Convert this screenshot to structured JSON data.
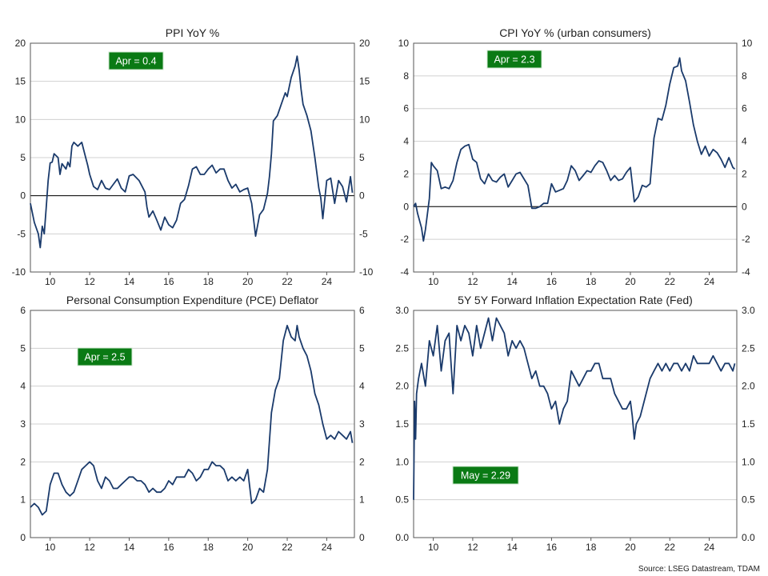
{
  "source": "Source: LSEG Datastream, TDAM",
  "chart_data": [
    {
      "type": "line",
      "title": "PPI YoY %",
      "badge": "Apr  = 0.4",
      "ylim": [
        -10,
        20
      ],
      "yticks": [
        -10,
        -5,
        0,
        5,
        10,
        15,
        20
      ],
      "xlim": [
        2009.0,
        2025.4
      ],
      "xticks": [
        10,
        12,
        14,
        16,
        18,
        20,
        22,
        24
      ],
      "zero_line": true,
      "grid": true,
      "color": "#1a3a6b",
      "series": [
        {
          "x": [
            2009.0,
            2009.2,
            2009.4,
            2009.5,
            2009.6,
            2009.7,
            2009.8,
            2009.9,
            2010.0,
            2010.1,
            2010.2,
            2010.4,
            2010.5,
            2010.6,
            2010.8,
            2010.9,
            2011.0,
            2011.1,
            2011.2,
            2011.4,
            2011.6,
            2011.8,
            2011.9,
            2012.0,
            2012.2,
            2012.4,
            2012.6,
            2012.8,
            2013.0,
            2013.2,
            2013.4,
            2013.6,
            2013.8,
            2014.0,
            2014.2,
            2014.5,
            2014.8,
            2014.9,
            2015.0,
            2015.2,
            2015.4,
            2015.6,
            2015.8,
            2016.0,
            2016.2,
            2016.4,
            2016.6,
            2016.8,
            2017.0,
            2017.2,
            2017.4,
            2017.6,
            2017.8,
            2018.0,
            2018.2,
            2018.4,
            2018.6,
            2018.8,
            2019.0,
            2019.2,
            2019.4,
            2019.6,
            2019.8,
            2020.0,
            2020.2,
            2020.4,
            2020.6,
            2020.8,
            2021.0,
            2021.1,
            2021.2,
            2021.3,
            2021.5,
            2021.7,
            2021.9,
            2022.0,
            2022.2,
            2022.4,
            2022.5,
            2022.6,
            2022.7,
            2022.8,
            2023.0,
            2023.2,
            2023.4,
            2023.6,
            2023.7,
            2023.8,
            2024.0,
            2024.2,
            2024.4,
            2024.6,
            2024.8,
            2025.0,
            2025.2,
            2025.3
          ],
          "y": [
            -1.0,
            -3.5,
            -5.0,
            -6.8,
            -4.0,
            -5.0,
            -1.5,
            2.0,
            4.3,
            4.4,
            5.5,
            5.0,
            2.8,
            4.2,
            3.5,
            4.4,
            3.8,
            6.5,
            7.0,
            6.5,
            7.0,
            5.0,
            4.0,
            2.8,
            1.2,
            0.8,
            2.0,
            1.0,
            0.8,
            1.5,
            2.2,
            1.0,
            0.5,
            2.6,
            2.8,
            2.0,
            0.5,
            -1.5,
            -2.8,
            -2.0,
            -3.2,
            -4.5,
            -2.8,
            -3.8,
            -4.2,
            -3.2,
            -1.0,
            -0.5,
            1.3,
            3.5,
            3.8,
            2.8,
            2.8,
            3.5,
            4.0,
            3.0,
            3.5,
            3.5,
            2.0,
            1.0,
            1.5,
            0.5,
            0.8,
            1.0,
            -1.0,
            -5.3,
            -2.5,
            -1.8,
            0.3,
            2.5,
            5.5,
            9.8,
            10.5,
            12.0,
            13.5,
            13.0,
            15.5,
            17.0,
            18.3,
            16.5,
            14.0,
            12.0,
            10.5,
            8.5,
            5.0,
            1.0,
            -0.3,
            -3.0,
            2.0,
            2.3,
            -1.0,
            2.0,
            1.2,
            -0.8,
            2.5,
            0.4
          ]
        }
      ]
    },
    {
      "type": "line",
      "title": "CPI YoY % (urban consumers)",
      "badge": "Apr  = 2.3",
      "ylim": [
        -4,
        10
      ],
      "yticks": [
        -4,
        -2,
        0,
        2,
        4,
        6,
        8,
        10
      ],
      "xlim": [
        2009.0,
        2025.4
      ],
      "xticks": [
        10,
        12,
        14,
        16,
        18,
        20,
        22,
        24
      ],
      "zero_line": true,
      "grid": true,
      "color": "#1a3a6b",
      "series": [
        {
          "x": [
            2009.0,
            2009.1,
            2009.2,
            2009.4,
            2009.5,
            2009.6,
            2009.8,
            2009.9,
            2010.0,
            2010.2,
            2010.4,
            2010.6,
            2010.8,
            2011.0,
            2011.2,
            2011.4,
            2011.6,
            2011.8,
            2012.0,
            2012.2,
            2012.4,
            2012.6,
            2012.8,
            2013.0,
            2013.2,
            2013.4,
            2013.6,
            2013.8,
            2014.0,
            2014.2,
            2014.4,
            2014.6,
            2014.8,
            2015.0,
            2015.2,
            2015.4,
            2015.6,
            2015.8,
            2016.0,
            2016.2,
            2016.4,
            2016.6,
            2016.8,
            2017.0,
            2017.2,
            2017.4,
            2017.6,
            2017.8,
            2018.0,
            2018.2,
            2018.4,
            2018.6,
            2018.8,
            2019.0,
            2019.2,
            2019.4,
            2019.6,
            2019.8,
            2020.0,
            2020.2,
            2020.4,
            2020.6,
            2020.8,
            2021.0,
            2021.2,
            2021.4,
            2021.6,
            2021.8,
            2022.0,
            2022.2,
            2022.4,
            2022.5,
            2022.6,
            2022.8,
            2023.0,
            2023.2,
            2023.4,
            2023.6,
            2023.8,
            2024.0,
            2024.2,
            2024.4,
            2024.6,
            2024.8,
            2025.0,
            2025.2,
            2025.3
          ],
          "y": [
            0.0,
            0.2,
            -0.4,
            -1.3,
            -2.1,
            -1.4,
            0.5,
            2.7,
            2.5,
            2.2,
            1.1,
            1.2,
            1.1,
            1.6,
            2.7,
            3.5,
            3.7,
            3.8,
            2.9,
            2.7,
            1.7,
            1.4,
            2.0,
            1.6,
            1.5,
            1.8,
            2.0,
            1.2,
            1.6,
            2.0,
            2.1,
            1.7,
            1.3,
            -0.1,
            -0.1,
            0.0,
            0.2,
            0.2,
            1.4,
            0.9,
            1.0,
            1.1,
            1.6,
            2.5,
            2.2,
            1.6,
            1.9,
            2.2,
            2.1,
            2.5,
            2.8,
            2.7,
            2.2,
            1.6,
            1.9,
            1.6,
            1.7,
            2.1,
            2.4,
            0.3,
            0.6,
            1.3,
            1.2,
            1.4,
            4.2,
            5.4,
            5.3,
            6.2,
            7.5,
            8.5,
            8.6,
            9.1,
            8.3,
            7.7,
            6.4,
            5.0,
            4.0,
            3.2,
            3.7,
            3.1,
            3.5,
            3.3,
            2.9,
            2.4,
            3.0,
            2.4,
            2.3
          ]
        }
      ]
    },
    {
      "type": "line",
      "title": "Personal Consumption Expenditure (PCE) Deflator",
      "badge": "Apr  = 2.5",
      "ylim": [
        0,
        6
      ],
      "yticks": [
        0,
        1,
        2,
        3,
        4,
        5,
        6
      ],
      "xlim": [
        2009.0,
        2025.4
      ],
      "xticks": [
        10,
        12,
        14,
        16,
        18,
        20,
        22,
        24
      ],
      "zero_line": false,
      "grid": true,
      "color": "#1a3a6b",
      "series": [
        {
          "x": [
            2009.0,
            2009.2,
            2009.4,
            2009.6,
            2009.8,
            2010.0,
            2010.2,
            2010.4,
            2010.6,
            2010.8,
            2011.0,
            2011.2,
            2011.4,
            2011.6,
            2011.8,
            2012.0,
            2012.2,
            2012.4,
            2012.6,
            2012.8,
            2013.0,
            2013.2,
            2013.4,
            2013.6,
            2013.8,
            2014.0,
            2014.2,
            2014.4,
            2014.6,
            2014.8,
            2015.0,
            2015.2,
            2015.4,
            2015.6,
            2015.8,
            2016.0,
            2016.2,
            2016.4,
            2016.6,
            2016.8,
            2017.0,
            2017.2,
            2017.4,
            2017.6,
            2017.8,
            2018.0,
            2018.2,
            2018.4,
            2018.6,
            2018.8,
            2019.0,
            2019.2,
            2019.4,
            2019.6,
            2019.8,
            2020.0,
            2020.2,
            2020.4,
            2020.6,
            2020.8,
            2021.0,
            2021.2,
            2021.4,
            2021.6,
            2021.8,
            2022.0,
            2022.2,
            2022.4,
            2022.5,
            2022.6,
            2022.8,
            2023.0,
            2023.2,
            2023.4,
            2023.6,
            2023.8,
            2024.0,
            2024.2,
            2024.4,
            2024.6,
            2024.8,
            2025.0,
            2025.2,
            2025.3
          ],
          "y": [
            0.8,
            0.9,
            0.8,
            0.6,
            0.7,
            1.4,
            1.7,
            1.7,
            1.4,
            1.2,
            1.1,
            1.2,
            1.5,
            1.8,
            1.9,
            2.0,
            1.9,
            1.5,
            1.3,
            1.6,
            1.5,
            1.3,
            1.3,
            1.4,
            1.5,
            1.6,
            1.6,
            1.5,
            1.5,
            1.4,
            1.2,
            1.3,
            1.2,
            1.2,
            1.3,
            1.5,
            1.4,
            1.6,
            1.6,
            1.6,
            1.8,
            1.7,
            1.5,
            1.6,
            1.8,
            1.8,
            2.0,
            1.9,
            1.9,
            1.8,
            1.5,
            1.6,
            1.5,
            1.6,
            1.5,
            1.8,
            0.9,
            1.0,
            1.3,
            1.2,
            1.8,
            3.3,
            3.9,
            4.2,
            5.2,
            5.6,
            5.3,
            5.2,
            5.6,
            5.3,
            5.0,
            4.8,
            4.4,
            3.8,
            3.5,
            3.0,
            2.6,
            2.7,
            2.6,
            2.8,
            2.7,
            2.6,
            2.8,
            2.5
          ]
        }
      ]
    },
    {
      "type": "line",
      "title": "5Y 5Y Forward Inflation Expectation Rate (Fed)",
      "badge": "May  = 2.29",
      "ylim": [
        0.0,
        3.0
      ],
      "yticks": [
        0.0,
        0.5,
        1.0,
        1.5,
        2.0,
        2.5,
        3.0
      ],
      "xlim": [
        2009.0,
        2025.4
      ],
      "xticks": [
        10,
        12,
        14,
        16,
        18,
        20,
        22,
        24
      ],
      "zero_line": false,
      "grid": true,
      "color": "#1a3a6b",
      "series": [
        {
          "x": [
            2009.0,
            2009.05,
            2009.1,
            2009.15,
            2009.25,
            2009.4,
            2009.6,
            2009.8,
            2010.0,
            2010.2,
            2010.4,
            2010.6,
            2010.8,
            2011.0,
            2011.2,
            2011.4,
            2011.6,
            2011.8,
            2012.0,
            2012.2,
            2012.4,
            2012.6,
            2012.8,
            2013.0,
            2013.2,
            2013.4,
            2013.6,
            2013.8,
            2014.0,
            2014.2,
            2014.4,
            2014.6,
            2014.8,
            2015.0,
            2015.2,
            2015.4,
            2015.6,
            2015.8,
            2016.0,
            2016.2,
            2016.4,
            2016.6,
            2016.8,
            2017.0,
            2017.2,
            2017.4,
            2017.6,
            2017.8,
            2018.0,
            2018.2,
            2018.4,
            2018.6,
            2018.8,
            2019.0,
            2019.2,
            2019.4,
            2019.6,
            2019.8,
            2020.0,
            2020.1,
            2020.2,
            2020.3,
            2020.5,
            2020.7,
            2020.9,
            2021.0,
            2021.2,
            2021.4,
            2021.6,
            2021.8,
            2022.0,
            2022.2,
            2022.4,
            2022.6,
            2022.8,
            2023.0,
            2023.2,
            2023.4,
            2023.6,
            2023.8,
            2024.0,
            2024.2,
            2024.4,
            2024.6,
            2024.8,
            2025.0,
            2025.2,
            2025.3
          ],
          "y": [
            0.5,
            1.8,
            1.3,
            1.9,
            2.1,
            2.3,
            2.0,
            2.6,
            2.4,
            2.8,
            2.2,
            2.6,
            2.7,
            1.9,
            2.8,
            2.6,
            2.8,
            2.7,
            2.4,
            2.8,
            2.5,
            2.7,
            2.9,
            2.6,
            2.9,
            2.8,
            2.7,
            2.4,
            2.6,
            2.5,
            2.6,
            2.5,
            2.3,
            2.1,
            2.2,
            2.0,
            2.0,
            1.9,
            1.7,
            1.8,
            1.5,
            1.7,
            1.8,
            2.2,
            2.1,
            2.0,
            2.1,
            2.2,
            2.2,
            2.3,
            2.3,
            2.1,
            2.1,
            2.1,
            1.9,
            1.8,
            1.7,
            1.7,
            1.8,
            1.6,
            1.3,
            1.5,
            1.6,
            1.8,
            2.0,
            2.1,
            2.2,
            2.3,
            2.2,
            2.3,
            2.2,
            2.3,
            2.3,
            2.2,
            2.3,
            2.2,
            2.4,
            2.3,
            2.3,
            2.3,
            2.3,
            2.4,
            2.3,
            2.2,
            2.3,
            2.3,
            2.2,
            2.3
          ]
        }
      ]
    }
  ]
}
